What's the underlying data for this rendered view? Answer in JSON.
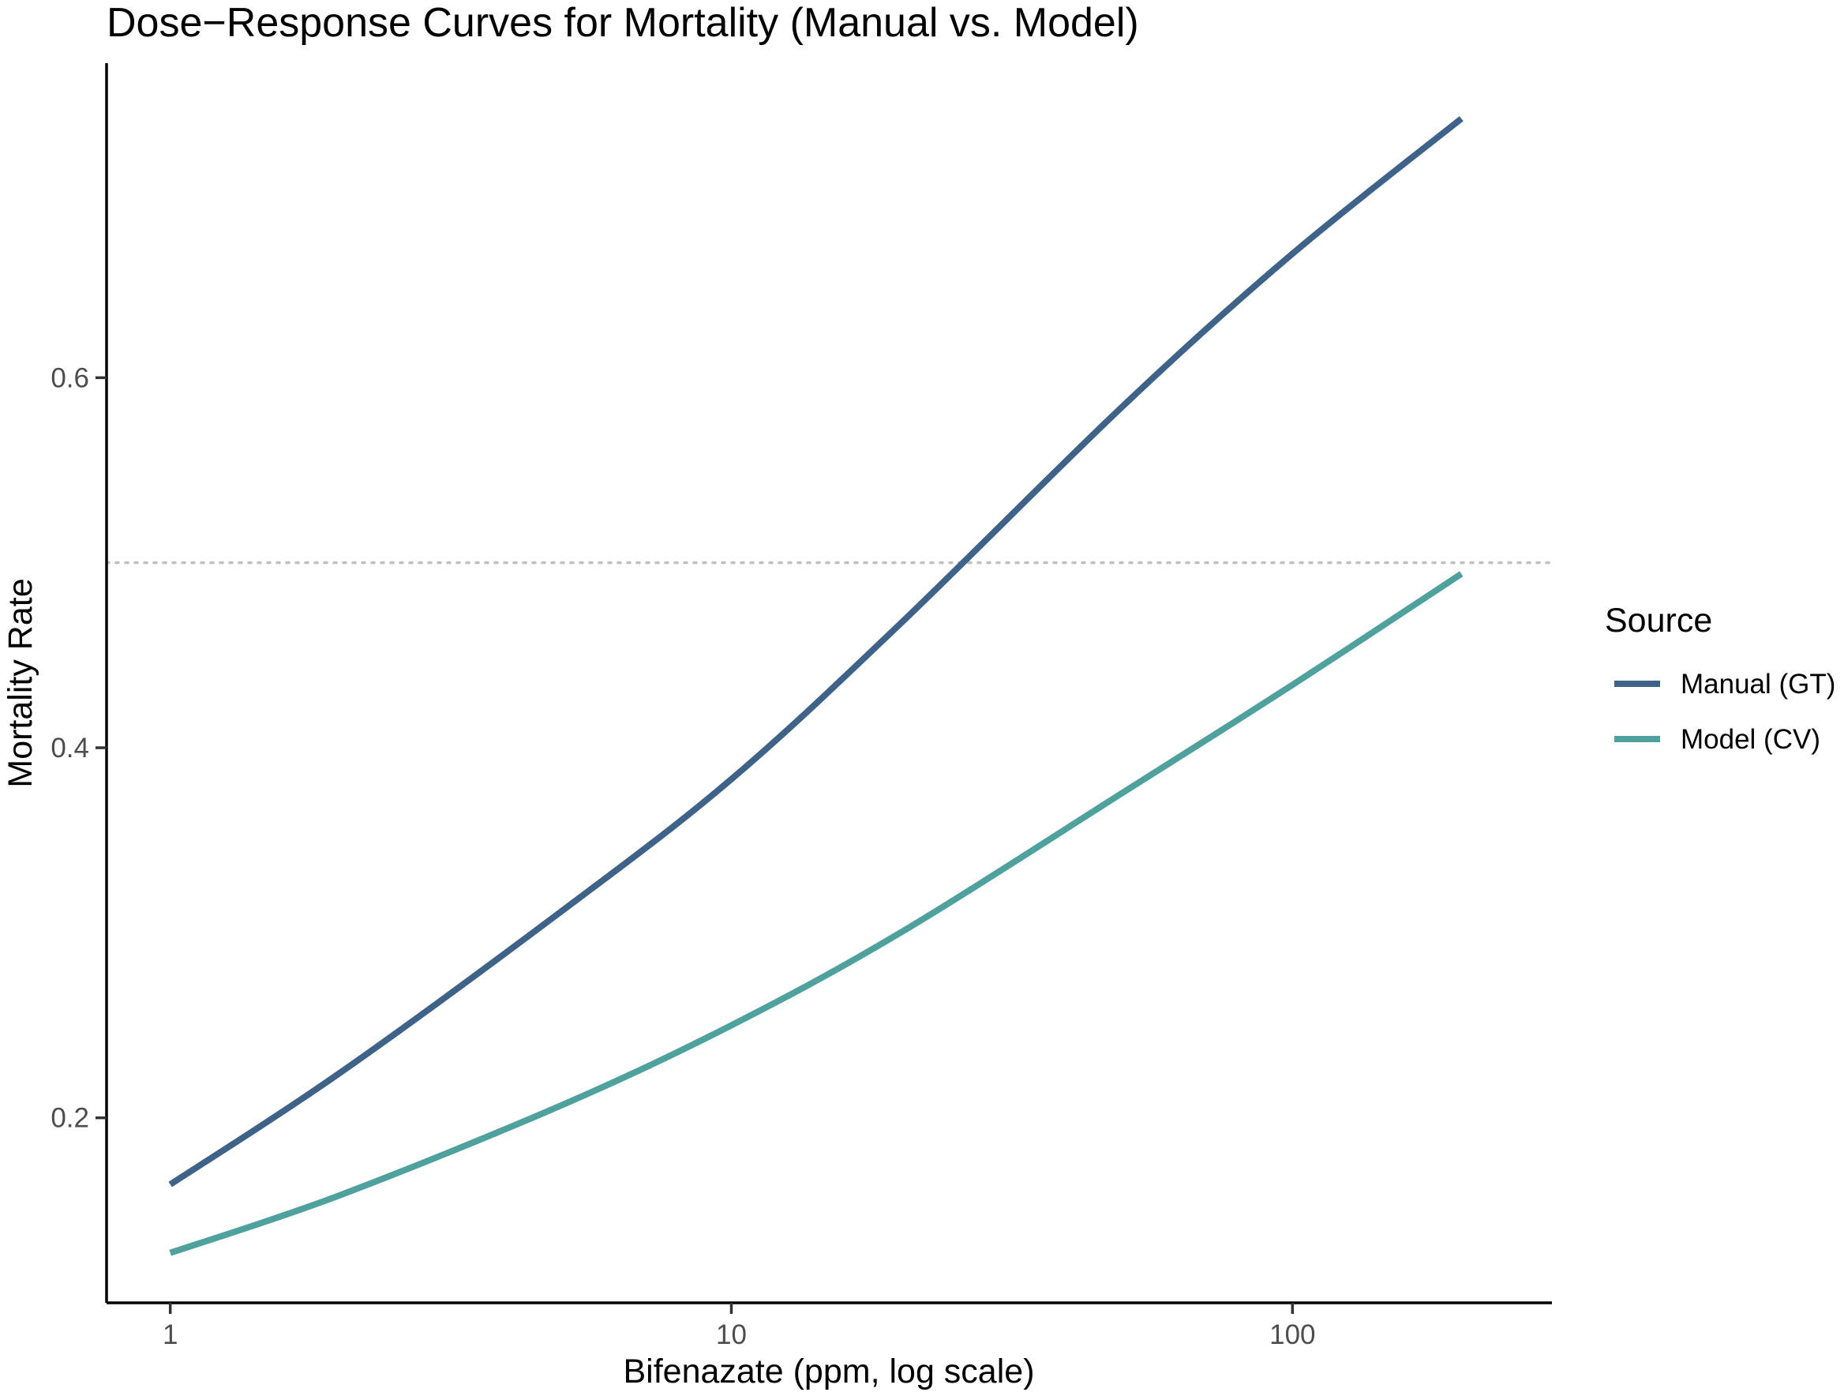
{
  "chart_data": {
    "type": "line",
    "title": "Dose−Response Curves for Mortality (Manual vs. Model)",
    "xlabel": "Bifenazate (ppm, log scale)",
    "ylabel": "Mortality Rate",
    "x_scale": "log10",
    "xlim": [
      0.77,
      290
    ],
    "ylim": [
      0.1,
      0.77
    ],
    "x_ticks": [
      1,
      10,
      100
    ],
    "x_tick_labels": [
      "1",
      "10",
      "100"
    ],
    "y_ticks": [
      0.2,
      0.4,
      0.6
    ],
    "y_tick_labels": [
      "0.2",
      "0.4",
      "0.6"
    ],
    "grid": false,
    "reference_line": {
      "y": 0.5,
      "style": "dotted",
      "color": "#bfbfbf"
    },
    "legend": {
      "title": "Source",
      "position": "right"
    },
    "series": [
      {
        "name": "Manual (GT)",
        "color": "#3f6288",
        "x": [
          1,
          2,
          5,
          10,
          20,
          50,
          100,
          200
        ],
        "y": [
          0.164,
          0.224,
          0.312,
          0.383,
          0.467,
          0.585,
          0.667,
          0.74
        ]
      },
      {
        "name": "Model (CV)",
        "color": "#4ea19c",
        "x": [
          1,
          2,
          5,
          10,
          20,
          50,
          100,
          200
        ],
        "y": [
          0.127,
          0.158,
          0.207,
          0.25,
          0.3,
          0.376,
          0.434,
          0.494
        ]
      }
    ]
  }
}
